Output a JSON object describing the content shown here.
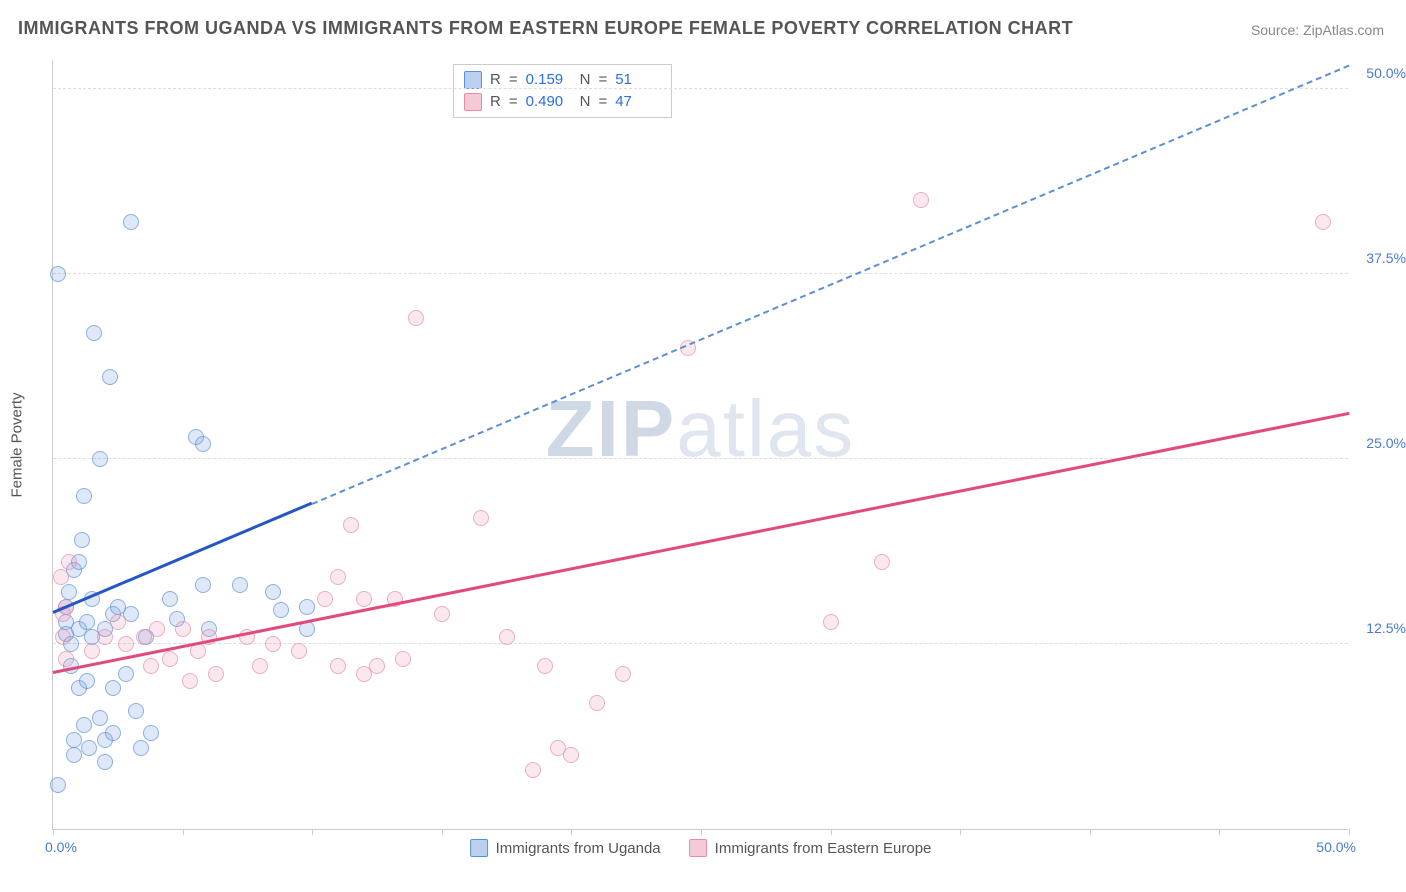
{
  "title": "IMMIGRANTS FROM UGANDA VS IMMIGRANTS FROM EASTERN EUROPE FEMALE POVERTY CORRELATION CHART",
  "source_label": "Source: ZipAtlas.com",
  "watermark": {
    "part1": "ZIP",
    "part2": "atlas"
  },
  "chart": {
    "type": "scatter",
    "background_color": "#ffffff",
    "grid_color": "#dddddd",
    "axis_color": "#cccccc",
    "tick_label_color": "#4a7bd4",
    "label_fontsize": 15,
    "title_fontsize": 18,
    "x": {
      "min": 0,
      "max": 50,
      "origin_label": "0.0%",
      "max_label": "50.0%",
      "tick_positions": [
        0,
        5,
        10,
        15,
        20,
        25,
        30,
        35,
        40,
        45,
        50
      ]
    },
    "y": {
      "min": 0,
      "max": 52,
      "title": "Female Poverty",
      "gridlines": [
        12.5,
        25.0,
        37.5,
        50.0
      ],
      "grid_labels": [
        "12.5%",
        "25.0%",
        "37.5%",
        "50.0%"
      ]
    },
    "series": [
      {
        "name": "Immigrants from Uganda",
        "color_fill": "rgba(120,160,225,0.35)",
        "color_stroke": "#5b8fd6",
        "trend_solid_color": "#2456c4",
        "trend_dash_color": "#5b8fd6",
        "R": "0.159",
        "N": "51",
        "regression": {
          "intercept": 14.5,
          "slope": 0.74
        },
        "data_solid_xmax": 10,
        "points": [
          [
            0.2,
            37.5
          ],
          [
            0.2,
            3.0
          ],
          [
            0.5,
            14.0
          ],
          [
            0.5,
            15.0
          ],
          [
            0.5,
            13.2
          ],
          [
            0.6,
            16.0
          ],
          [
            0.7,
            12.5
          ],
          [
            0.7,
            11.0
          ],
          [
            0.8,
            17.5
          ],
          [
            0.8,
            6.0
          ],
          [
            0.8,
            5.0
          ],
          [
            1.0,
            18.0
          ],
          [
            1.0,
            13.5
          ],
          [
            1.0,
            9.5
          ],
          [
            1.1,
            19.5
          ],
          [
            1.2,
            22.5
          ],
          [
            1.2,
            7.0
          ],
          [
            1.3,
            14.0
          ],
          [
            1.3,
            10.0
          ],
          [
            1.4,
            5.5
          ],
          [
            1.5,
            15.5
          ],
          [
            1.5,
            13.0
          ],
          [
            1.6,
            33.5
          ],
          [
            1.8,
            25.0
          ],
          [
            1.8,
            7.5
          ],
          [
            2.0,
            13.5
          ],
          [
            2.0,
            6.0
          ],
          [
            2.0,
            4.5
          ],
          [
            2.2,
            30.5
          ],
          [
            2.3,
            14.5
          ],
          [
            2.3,
            9.5
          ],
          [
            2.3,
            6.5
          ],
          [
            2.5,
            15.0
          ],
          [
            2.8,
            10.5
          ],
          [
            3.0,
            41.0
          ],
          [
            3.0,
            14.5
          ],
          [
            3.2,
            8.0
          ],
          [
            3.4,
            5.5
          ],
          [
            3.6,
            13.0
          ],
          [
            3.8,
            6.5
          ],
          [
            4.5,
            15.5
          ],
          [
            4.8,
            14.2
          ],
          [
            5.5,
            26.5
          ],
          [
            5.8,
            26.0
          ],
          [
            5.8,
            16.5
          ],
          [
            6.0,
            13.5
          ],
          [
            7.2,
            16.5
          ],
          [
            8.5,
            16.0
          ],
          [
            8.8,
            14.8
          ],
          [
            9.8,
            15.0
          ],
          [
            9.8,
            13.5
          ]
        ]
      },
      {
        "name": "Immigrants from Eastern Europe",
        "color_fill": "rgba(235,150,175,0.3)",
        "color_stroke": "#e58ba8",
        "trend_solid_color": "#e14a7a",
        "trend_dash_color": "#e58ba8",
        "R": "0.490",
        "N": "47",
        "regression": {
          "intercept": 10.5,
          "slope": 0.35
        },
        "data_solid_xmax": 50,
        "points": [
          [
            0.3,
            17.0
          ],
          [
            0.4,
            14.5
          ],
          [
            0.4,
            13.0
          ],
          [
            0.5,
            15.0
          ],
          [
            0.5,
            11.5
          ],
          [
            0.6,
            18.0
          ],
          [
            1.5,
            12.0
          ],
          [
            2.0,
            13.0
          ],
          [
            2.5,
            14.0
          ],
          [
            2.8,
            12.5
          ],
          [
            3.5,
            13.0
          ],
          [
            3.8,
            11.0
          ],
          [
            4.0,
            13.5
          ],
          [
            4.5,
            11.5
          ],
          [
            5.0,
            13.5
          ],
          [
            5.3,
            10.0
          ],
          [
            5.6,
            12.0
          ],
          [
            6.0,
            13.0
          ],
          [
            6.3,
            10.5
          ],
          [
            7.5,
            13.0
          ],
          [
            8.0,
            11.0
          ],
          [
            8.5,
            12.5
          ],
          [
            9.5,
            12.0
          ],
          [
            10.5,
            15.5
          ],
          [
            11.0,
            11.0
          ],
          [
            11.0,
            17.0
          ],
          [
            11.5,
            20.5
          ],
          [
            12.0,
            10.5
          ],
          [
            12.0,
            15.5
          ],
          [
            12.5,
            11.0
          ],
          [
            13.2,
            15.5
          ],
          [
            13.5,
            11.5
          ],
          [
            14.0,
            34.5
          ],
          [
            15.0,
            14.5
          ],
          [
            16.5,
            21.0
          ],
          [
            17.5,
            13.0
          ],
          [
            18.5,
            4.0
          ],
          [
            19.0,
            11.0
          ],
          [
            19.5,
            5.5
          ],
          [
            20.0,
            5.0
          ],
          [
            21.0,
            8.5
          ],
          [
            22.0,
            10.5
          ],
          [
            24.5,
            32.5
          ],
          [
            30.0,
            14.0
          ],
          [
            32.0,
            18.0
          ],
          [
            33.5,
            42.5
          ],
          [
            49.0,
            41.0
          ]
        ]
      }
    ],
    "rn_legend_labels": {
      "R": "R",
      "N": "N",
      "equals": "="
    },
    "bottom_legend_labels": [
      "Immigrants from Uganda",
      "Immigrants from Eastern Europe"
    ]
  }
}
